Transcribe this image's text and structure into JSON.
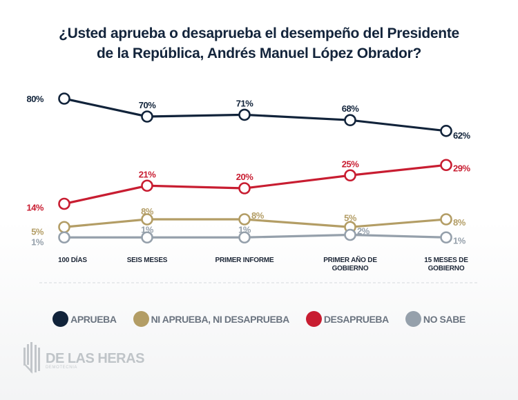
{
  "title_line1": "¿Usted aprueba o desaprueba el desempeño del Presidente",
  "title_line2": "de la República, Andrés Manuel López Obrador?",
  "chart_data": {
    "type": "line",
    "title": "¿Usted aprueba o desaprueba el desempeño del Presidente de la República, Andrés Manuel López Obrador?",
    "categories": [
      [
        "100 DÍAS"
      ],
      [
        "SEIS MESES"
      ],
      [
        "PRIMER INFORME"
      ],
      [
        "PRIMER AÑO DE",
        "GOBIERNO"
      ],
      [
        "15 MESES DE",
        "GOBIERNO"
      ]
    ],
    "series": [
      {
        "name": "APRUEBA",
        "color": "#11233a",
        "values": [
          80,
          70,
          71,
          68,
          62
        ]
      },
      {
        "name": "DESAPRUEBA",
        "color": "#c81d31",
        "values": [
          14,
          21,
          20,
          25,
          29
        ]
      },
      {
        "name": "NI APRUEBA, NI DESAPRUEBA",
        "color": "#b39d65",
        "values": [
          5,
          8,
          8,
          5,
          8
        ]
      },
      {
        "name": "NO SABE",
        "color": "#95a0ab",
        "values": [
          1,
          1,
          1,
          2,
          1
        ]
      }
    ],
    "value_suffix": "%",
    "legend_position": "bottom",
    "grid": false
  },
  "legend": [
    {
      "label": "APRUEBA",
      "color": "#11233a"
    },
    {
      "label": "NI APRUEBA, NI DESAPRUEBA",
      "color": "#b39d65"
    },
    {
      "label": "DESAPRUEBA",
      "color": "#c81d31"
    },
    {
      "label": "NO SABE",
      "color": "#95a0ab"
    }
  ],
  "logo": {
    "name": "DE LAS HERAS",
    "subtitle": "DEMOTECNIA"
  }
}
